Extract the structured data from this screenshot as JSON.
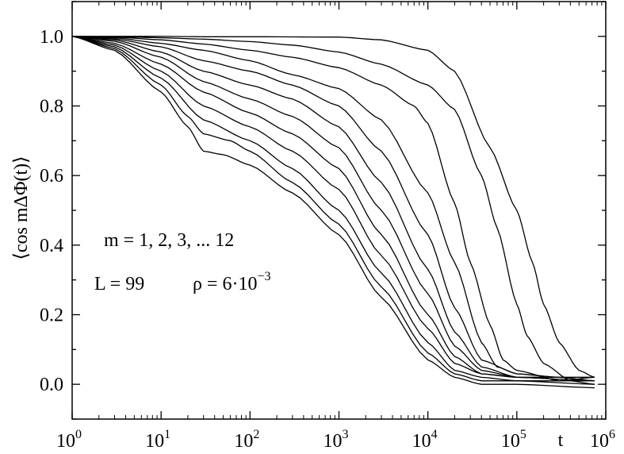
{
  "chart_data": {
    "type": "line",
    "title": "",
    "ylabel": "⟨cos mΔΦ(t)⟩",
    "xlabel": "t",
    "xscale": "log",
    "xlim": [
      1,
      1000000
    ],
    "ylim": [
      -0.1,
      1.1
    ],
    "grid": false,
    "x_ticks": [
      {
        "base": "10",
        "exp": "0",
        "value": 1
      },
      {
        "base": "10",
        "exp": "1",
        "value": 10
      },
      {
        "base": "10",
        "exp": "2",
        "value": 100
      },
      {
        "base": "10",
        "exp": "3",
        "value": 1000
      },
      {
        "base": "10",
        "exp": "4",
        "value": 10000
      },
      {
        "base": "10",
        "exp": "5",
        "value": 100000
      },
      {
        "base": "10",
        "exp": "6",
        "value": 1000000
      }
    ],
    "y_ticks": [
      "0.0",
      "0.2",
      "0.4",
      "0.6",
      "0.8",
      "1.0"
    ],
    "annotations": {
      "line1": "m = 1, 2, 3, ... 12",
      "line2_left": "L = 99",
      "line2_rho": "ρ = 6·10",
      "line2_exp": "−3"
    },
    "series": [
      {
        "values": [
          [
            1,
            1.0
          ],
          [
            3,
            1.0
          ],
          [
            10,
            1.0
          ],
          [
            30,
            0.999
          ],
          [
            100,
            0.999
          ],
          [
            1000,
            0.998
          ],
          [
            3000,
            0.99
          ],
          [
            10000,
            0.96
          ],
          [
            20000,
            0.9
          ],
          [
            50000,
            0.68
          ],
          [
            100000,
            0.5
          ],
          [
            150000,
            0.35
          ],
          [
            200000,
            0.23
          ],
          [
            300000,
            0.12
          ],
          [
            500000,
            0.04
          ],
          [
            750000,
            0.02
          ]
        ]
      },
      {
        "values": [
          [
            1,
            1.0
          ],
          [
            3,
            0.999
          ],
          [
            10,
            0.996
          ],
          [
            30,
            0.992
          ],
          [
            100,
            0.985
          ],
          [
            300,
            0.975
          ],
          [
            1000,
            0.955
          ],
          [
            3000,
            0.92
          ],
          [
            10000,
            0.86
          ],
          [
            20000,
            0.79
          ],
          [
            40000,
            0.6
          ],
          [
            60000,
            0.45
          ],
          [
            100000,
            0.23
          ],
          [
            130000,
            0.14
          ],
          [
            200000,
            0.06
          ],
          [
            400000,
            0.01
          ],
          [
            750000,
            0.0
          ]
        ]
      },
      {
        "values": [
          [
            1,
            1.0
          ],
          [
            3,
            0.998
          ],
          [
            10,
            0.99
          ],
          [
            30,
            0.978
          ],
          [
            100,
            0.96
          ],
          [
            300,
            0.94
          ],
          [
            1000,
            0.91
          ],
          [
            3000,
            0.86
          ],
          [
            7000,
            0.8
          ],
          [
            10000,
            0.75
          ],
          [
            20000,
            0.52
          ],
          [
            30000,
            0.35
          ],
          [
            50000,
            0.17
          ],
          [
            70000,
            0.07
          ],
          [
            100000,
            0.04
          ],
          [
            300000,
            0.01
          ],
          [
            750000,
            0.02
          ]
        ]
      },
      {
        "values": [
          [
            1,
            1.0
          ],
          [
            3,
            0.996
          ],
          [
            10,
            0.98
          ],
          [
            30,
            0.96
          ],
          [
            100,
            0.93
          ],
          [
            300,
            0.89
          ],
          [
            1000,
            0.85
          ],
          [
            3000,
            0.76
          ],
          [
            10000,
            0.55
          ],
          [
            20000,
            0.35
          ],
          [
            40000,
            0.12
          ],
          [
            60000,
            0.05
          ],
          [
            100000,
            0.03
          ],
          [
            300000,
            0.02
          ],
          [
            750000,
            0.01
          ]
        ]
      },
      {
        "values": [
          [
            1,
            1.0
          ],
          [
            3,
            0.993
          ],
          [
            10,
            0.97
          ],
          [
            30,
            0.93
          ],
          [
            100,
            0.9
          ],
          [
            300,
            0.86
          ],
          [
            1000,
            0.8
          ],
          [
            3000,
            0.67
          ],
          [
            10000,
            0.43
          ],
          [
            20000,
            0.22
          ],
          [
            40000,
            0.07
          ],
          [
            100000,
            0.03
          ],
          [
            300000,
            0.02
          ],
          [
            750000,
            0.02
          ]
        ]
      },
      {
        "values": [
          [
            1,
            1.0
          ],
          [
            3,
            0.99
          ],
          [
            10,
            0.955
          ],
          [
            30,
            0.9
          ],
          [
            100,
            0.86
          ],
          [
            300,
            0.82
          ],
          [
            1000,
            0.74
          ],
          [
            3000,
            0.58
          ],
          [
            10000,
            0.33
          ],
          [
            20000,
            0.15
          ],
          [
            40000,
            0.05
          ],
          [
            100000,
            0.02
          ],
          [
            300000,
            0.02
          ],
          [
            750000,
            0.01
          ]
        ]
      },
      {
        "values": [
          [
            1,
            1.0
          ],
          [
            3,
            0.986
          ],
          [
            10,
            0.94
          ],
          [
            30,
            0.87
          ],
          [
            100,
            0.82
          ],
          [
            300,
            0.77
          ],
          [
            1000,
            0.68
          ],
          [
            3000,
            0.5
          ],
          [
            10000,
            0.26
          ],
          [
            20000,
            0.11
          ],
          [
            40000,
            0.04
          ],
          [
            100000,
            0.02
          ],
          [
            750000,
            0.01
          ]
        ]
      },
      {
        "values": [
          [
            1,
            1.0
          ],
          [
            3,
            0.98
          ],
          [
            10,
            0.92
          ],
          [
            30,
            0.84
          ],
          [
            100,
            0.78
          ],
          [
            300,
            0.72
          ],
          [
            1000,
            0.62
          ],
          [
            3000,
            0.43
          ],
          [
            10000,
            0.2
          ],
          [
            20000,
            0.08
          ],
          [
            40000,
            0.03
          ],
          [
            100000,
            0.02
          ],
          [
            750000,
            0.02
          ]
        ]
      },
      {
        "values": [
          [
            1,
            1.0
          ],
          [
            3,
            0.975
          ],
          [
            10,
            0.9
          ],
          [
            30,
            0.8
          ],
          [
            100,
            0.74
          ],
          [
            300,
            0.67
          ],
          [
            1000,
            0.56
          ],
          [
            3000,
            0.37
          ],
          [
            10000,
            0.16
          ],
          [
            20000,
            0.06
          ],
          [
            40000,
            0.03
          ],
          [
            100000,
            0.02
          ],
          [
            750000,
            0.01
          ]
        ]
      },
      {
        "values": [
          [
            1,
            1.0
          ],
          [
            3,
            0.97
          ],
          [
            10,
            0.88
          ],
          [
            30,
            0.76
          ],
          [
            100,
            0.7
          ],
          [
            300,
            0.62
          ],
          [
            1000,
            0.5
          ],
          [
            3000,
            0.32
          ],
          [
            10000,
            0.12
          ],
          [
            20000,
            0.04
          ],
          [
            40000,
            0.02
          ],
          [
            100000,
            0.01
          ],
          [
            750000,
            0.01
          ]
        ]
      },
      {
        "values": [
          [
            1,
            1.0
          ],
          [
            3,
            0.965
          ],
          [
            10,
            0.86
          ],
          [
            20,
            0.77
          ],
          [
            30,
            0.72
          ],
          [
            60,
            0.7
          ],
          [
            100,
            0.67
          ],
          [
            300,
            0.58
          ],
          [
            1000,
            0.46
          ],
          [
            3000,
            0.28
          ],
          [
            10000,
            0.09
          ],
          [
            20000,
            0.03
          ],
          [
            40000,
            0.01
          ],
          [
            100000,
            0.01
          ],
          [
            750000,
            0.0
          ]
        ]
      },
      {
        "values": [
          [
            1,
            1.0
          ],
          [
            3,
            0.96
          ],
          [
            10,
            0.84
          ],
          [
            20,
            0.74
          ],
          [
            30,
            0.67
          ],
          [
            50,
            0.66
          ],
          [
            100,
            0.63
          ],
          [
            300,
            0.55
          ],
          [
            1000,
            0.43
          ],
          [
            3000,
            0.25
          ],
          [
            10000,
            0.07
          ],
          [
            20000,
            0.02
          ],
          [
            40000,
            0.0
          ],
          [
            100000,
            0.0
          ],
          [
            750000,
            -0.01
          ]
        ]
      }
    ]
  }
}
